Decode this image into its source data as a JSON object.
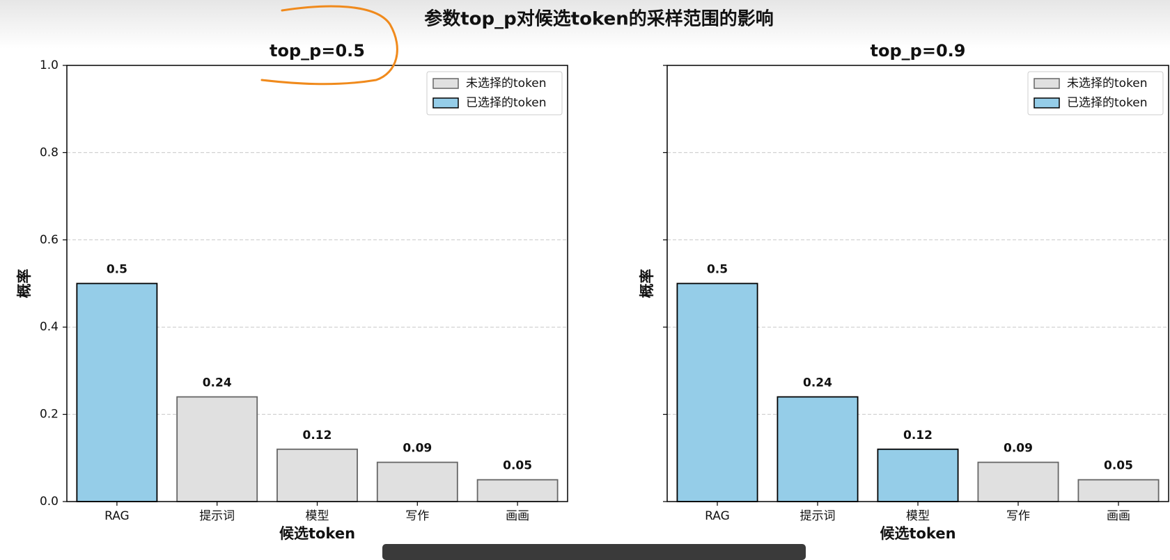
{
  "title": "参数top_p对候选token的采样范围的影响",
  "chart_data": [
    {
      "type": "bar",
      "title": "top_p=0.5",
      "x_label": "候选token",
      "y_label": "概率",
      "categories": [
        "RAG",
        "提示词",
        "模型",
        "写作",
        "画画"
      ],
      "values": [
        0.5,
        0.24,
        0.12,
        0.09,
        0.05
      ],
      "selected": [
        true,
        false,
        false,
        false,
        false
      ],
      "legend": [
        {
          "name": "未选择的token",
          "color": "#e0e0e0",
          "edge": "#666666"
        },
        {
          "name": "已选择的token",
          "color": "#95cde8",
          "edge": "#000000"
        }
      ],
      "legend_position": "upper-right",
      "ylim": [
        0,
        1
      ],
      "yticks": [
        {
          "value": 0,
          "label": "0.0"
        },
        0.2,
        0.4,
        0.6,
        0.8,
        {
          "value": 1,
          "label": "1.0"
        }
      ],
      "ytick_labels": true,
      "grid": true
    },
    {
      "type": "bar",
      "title": "top_p=0.9",
      "x_label": "候选token",
      "y_label": "概率",
      "categories": [
        "RAG",
        "提示词",
        "模型",
        "写作",
        "画画"
      ],
      "values": [
        0.5,
        0.24,
        0.12,
        0.09,
        0.05
      ],
      "selected": [
        true,
        true,
        true,
        false,
        false
      ],
      "legend": [
        {
          "name": "未选择的token",
          "color": "#e0e0e0",
          "edge": "#666666"
        },
        {
          "name": "已选择的token",
          "color": "#95cde8",
          "edge": "#000000"
        }
      ],
      "legend_position": "upper-right",
      "ylim": [
        0,
        1
      ],
      "yticks": [
        0,
        0.2,
        0.4,
        0.6,
        0.8,
        1
      ],
      "ytick_labels": false,
      "grid": true
    }
  ]
}
